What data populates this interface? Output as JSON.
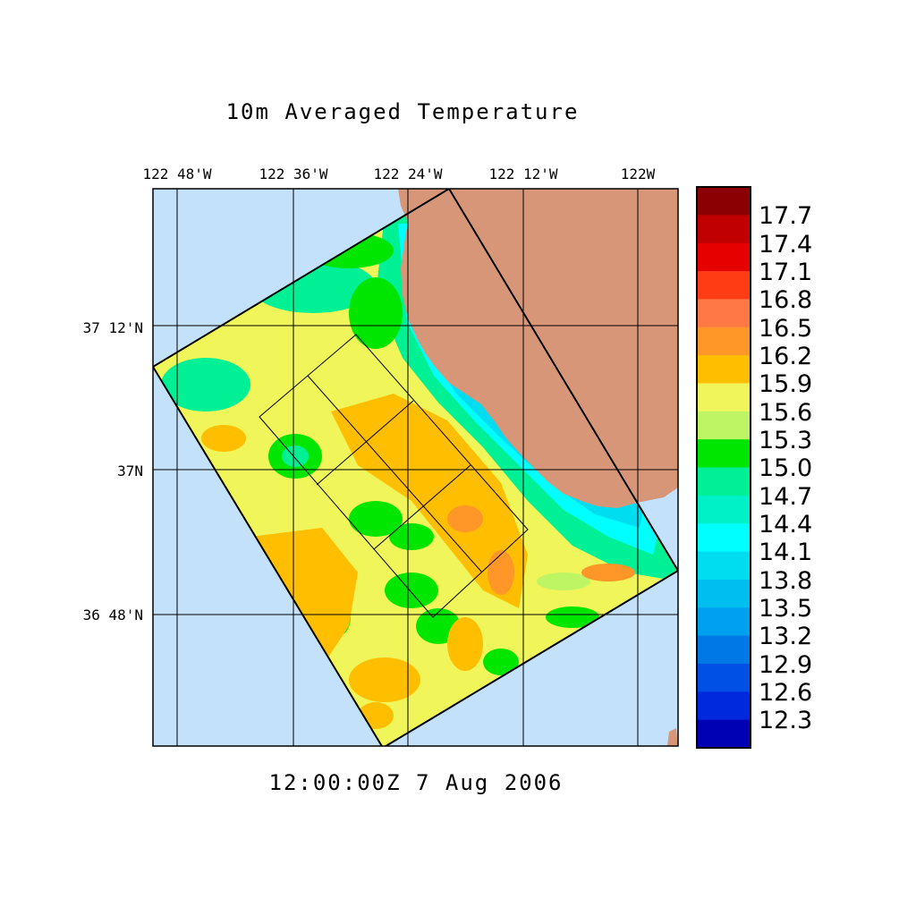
{
  "title": "10m Averaged Temperature",
  "timestamp": "12:00:00Z   7 Aug 2006",
  "lon_labels": [
    "122 48'W",
    "122 36'W",
    "122 24'W",
    "122 12'W",
    "122W"
  ],
  "lat_labels": [
    "37 12'N",
    "37N",
    "36 48'N"
  ],
  "colorbar": {
    "labels": [
      "17.7",
      "17.4",
      "17.1",
      "16.8",
      "16.5",
      "16.2",
      "15.9",
      "15.6",
      "15.3",
      "15.0",
      "14.7",
      "14.4",
      "14.1",
      "13.8",
      "13.5",
      "13.2",
      "12.9",
      "12.6",
      "12.3"
    ],
    "colors": [
      "#8b0000",
      "#c00000",
      "#e60000",
      "#ff3c14",
      "#ff7846",
      "#ff9628",
      "#ffbe00",
      "#f0f55a",
      "#bef564",
      "#00e600",
      "#00f096",
      "#00f0c8",
      "#00ffff",
      "#00dcf0",
      "#00bef0",
      "#00a0f0",
      "#0078e6",
      "#0050e6",
      "#0028dc",
      "#0000b4"
    ]
  },
  "colors": {
    "ocean": "#c3e1fa",
    "land": "#d79678"
  }
}
